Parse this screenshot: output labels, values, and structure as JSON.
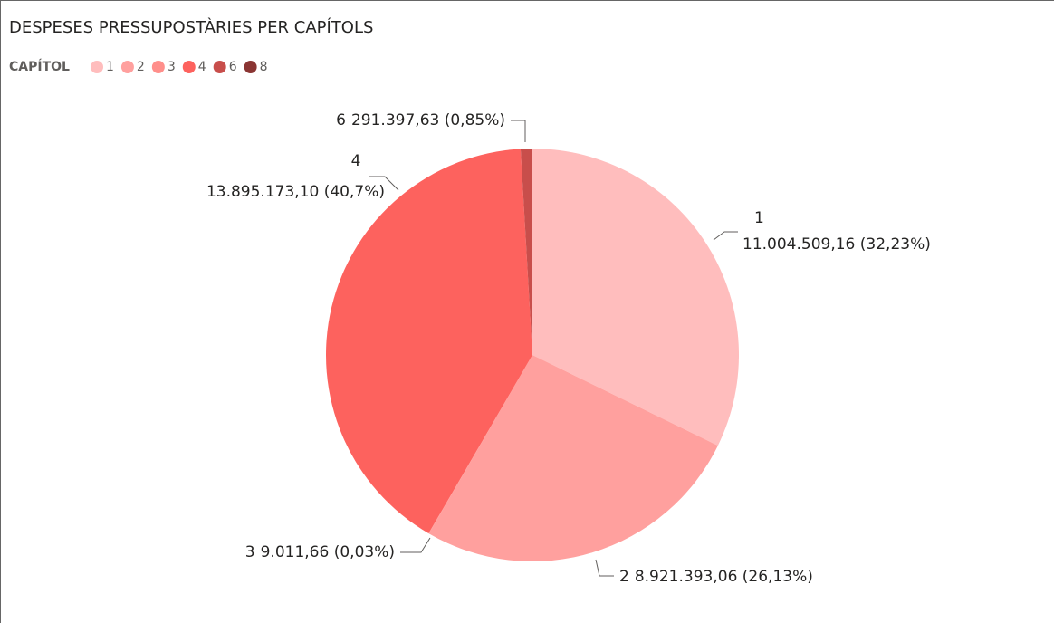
{
  "chart_data": {
    "type": "pie",
    "title": "DESPESES PRESSUPOSTÀRIES PER CAPÍTOLS",
    "legend_title": "CAPÍTOL",
    "legend": "top-left",
    "categories": [
      "1",
      "2",
      "3",
      "4",
      "6",
      "8"
    ],
    "values": [
      11004509.16,
      8921393.06,
      9011.66,
      13895173.1,
      291397.63,
      20000
    ],
    "value_labels": [
      "11.004.509,16 (32,23%)",
      "8.921.393,06 (26,13%)",
      "9.011,66 (0,03%)",
      "13.895.173,10 (40,7%)",
      "291.397,63 (0,85%)",
      null
    ],
    "colors": [
      "#ffbdbd",
      "#ffa09e",
      "#ff8f8b",
      "#fd625e",
      "#c84e4b",
      "#8a3533"
    ]
  }
}
